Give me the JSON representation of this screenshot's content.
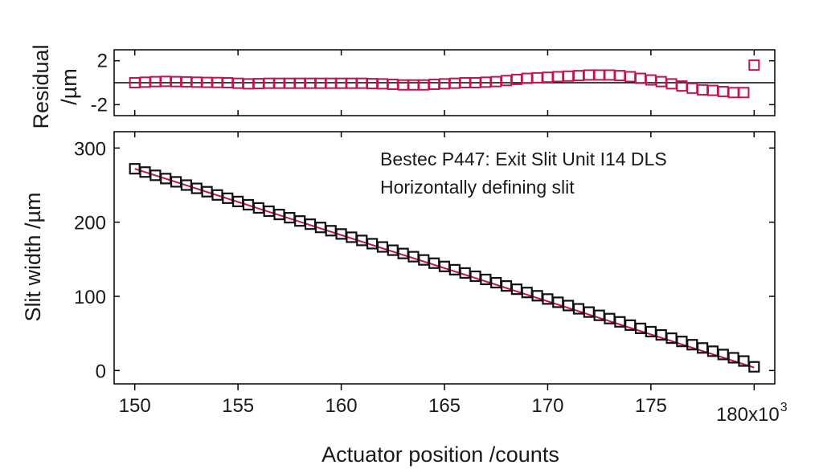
{
  "chart_data": [
    {
      "type": "scatter",
      "panel": "residual",
      "ylabel_line1": "Residual",
      "ylabel_line2": "/µm",
      "ylim": [
        -3,
        3
      ],
      "yticks": [
        "2",
        "-2"
      ],
      "ytick_values": [
        2,
        -2
      ],
      "zero_line": true,
      "marker_color": "#c8104e",
      "series": [
        {
          "x": [
            150.0,
            150.5,
            151.0,
            151.5,
            152.0,
            152.5,
            153.0,
            153.5,
            154.0,
            154.5,
            155.0,
            155.5,
            156.0,
            156.5,
            157.0,
            157.5,
            158.0,
            158.5,
            159.0,
            159.5,
            160.0,
            160.5,
            161.0,
            161.5,
            162.0,
            162.5,
            163.0,
            163.5,
            164.0,
            164.5,
            165.0,
            165.5,
            166.0,
            166.5,
            167.0,
            167.5,
            168.0,
            168.5,
            169.0,
            169.5,
            170.0,
            170.5,
            171.0,
            171.5,
            172.0,
            172.5,
            173.0,
            173.5,
            174.0,
            174.5,
            175.0,
            175.5,
            176.0,
            176.5,
            177.0,
            177.5,
            178.0,
            178.5,
            179.0,
            179.5,
            180.0
          ],
          "y": [
            0.0,
            0.05,
            0.1,
            0.12,
            0.1,
            0.08,
            0.05,
            0.03,
            0.02,
            0.0,
            -0.05,
            -0.1,
            -0.08,
            -0.05,
            -0.05,
            -0.05,
            -0.05,
            -0.05,
            -0.05,
            -0.05,
            -0.05,
            -0.05,
            -0.05,
            -0.08,
            -0.1,
            -0.15,
            -0.2,
            -0.2,
            -0.2,
            -0.15,
            -0.1,
            -0.05,
            0.0,
            0.0,
            0.05,
            0.1,
            0.2,
            0.3,
            0.4,
            0.45,
            0.5,
            0.55,
            0.6,
            0.65,
            0.7,
            0.7,
            0.7,
            0.65,
            0.55,
            0.4,
            0.25,
            0.1,
            -0.1,
            -0.3,
            -0.5,
            -0.65,
            -0.7,
            -0.8,
            -0.9,
            -0.9,
            1.6
          ]
        }
      ]
    },
    {
      "type": "scatter",
      "panel": "main",
      "ylabel": "Slit width /µm",
      "xlabel": "Actuator position /counts",
      "xlim": [
        149,
        181
      ],
      "ylim": [
        -18,
        322
      ],
      "xticks": [
        "150",
        "155",
        "160",
        "165",
        "170",
        "175",
        "180x10"
      ],
      "xtick_values": [
        150,
        155,
        160,
        165,
        170,
        175,
        180
      ],
      "x_exponent": "3",
      "yticks": [
        "0",
        "100",
        "200",
        "300"
      ],
      "ytick_values": [
        0,
        100,
        200,
        300
      ],
      "annotation_line1": "Bestec P447: Exit Slit Unit I14 DLS",
      "annotation_line2": "Horizontally defining slit",
      "marker_color": "#111111",
      "fit_color": "#c8104e",
      "fit_line": {
        "x": [
          150,
          180
        ],
        "y": [
          272,
          4
        ]
      },
      "series": [
        {
          "x": [
            150.0,
            150.5,
            151.0,
            151.5,
            152.0,
            152.5,
            153.0,
            153.5,
            154.0,
            154.5,
            155.0,
            155.5,
            156.0,
            156.5,
            157.0,
            157.5,
            158.0,
            158.5,
            159.0,
            159.5,
            160.0,
            160.5,
            161.0,
            161.5,
            162.0,
            162.5,
            163.0,
            163.5,
            164.0,
            164.5,
            165.0,
            165.5,
            166.0,
            166.5,
            167.0,
            167.5,
            168.0,
            168.5,
            169.0,
            169.5,
            170.0,
            170.5,
            171.0,
            171.5,
            172.0,
            172.5,
            173.0,
            173.5,
            174.0,
            174.5,
            175.0,
            175.5,
            176.0,
            176.5,
            177.0,
            177.5,
            178.0,
            178.5,
            179.0,
            179.5,
            180.0
          ],
          "y": [
            272.0,
            267.6,
            263.2,
            258.8,
            254.4,
            250.0,
            245.6,
            241.1,
            236.7,
            232.3,
            227.9,
            223.5,
            219.2,
            214.8,
            210.4,
            206.0,
            201.6,
            197.3,
            192.9,
            188.5,
            184.1,
            179.7,
            175.4,
            171.0,
            166.6,
            162.2,
            157.8,
            153.5,
            149.1,
            144.7,
            140.3,
            135.9,
            131.5,
            127.1,
            122.8,
            118.4,
            114.0,
            109.6,
            105.2,
            100.8,
            96.4,
            92.0,
            87.6,
            83.2,
            78.8,
            74.4,
            70.0,
            65.6,
            61.2,
            56.8,
            52.4,
            48.0,
            43.6,
            39.2,
            34.8,
            30.4,
            26.0,
            21.6,
            17.2,
            12.8,
            5.0
          ]
        }
      ]
    }
  ]
}
